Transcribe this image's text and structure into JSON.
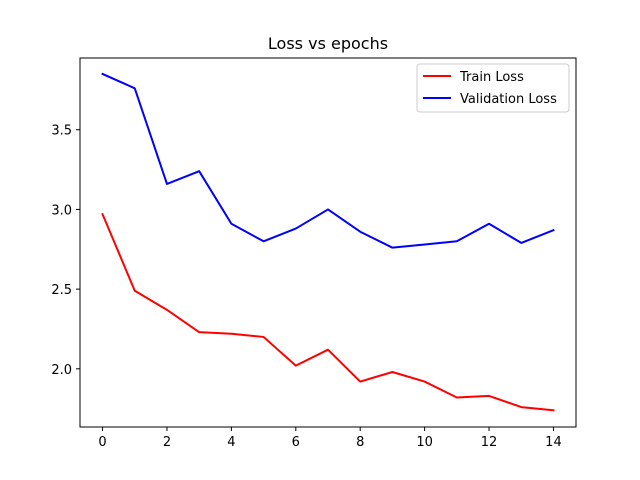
{
  "chart_data": {
    "type": "line",
    "title": "Loss vs epochs",
    "xlabel": "",
    "ylabel": "",
    "x": [
      0,
      1,
      2,
      3,
      4,
      5,
      6,
      7,
      8,
      9,
      10,
      11,
      12,
      13,
      14
    ],
    "series": [
      {
        "name": "Train Loss",
        "color": "#ff0000",
        "values": [
          2.97,
          2.49,
          2.37,
          2.23,
          2.22,
          2.2,
          2.02,
          2.12,
          1.92,
          1.98,
          1.92,
          1.82,
          1.83,
          1.76,
          1.74
        ]
      },
      {
        "name": "Validation Loss",
        "color": "#0000ff",
        "values": [
          3.85,
          3.76,
          3.16,
          3.24,
          2.91,
          2.8,
          2.88,
          3.0,
          2.86,
          2.76,
          2.78,
          2.8,
          2.91,
          2.79,
          2.87
        ]
      }
    ],
    "xlim": [
      -0.7,
      14.7
    ],
    "ylim": [
      1.635,
      3.95
    ],
    "xticks": [
      0,
      2,
      4,
      6,
      8,
      10,
      12,
      14
    ],
    "yticks": [
      2.0,
      2.5,
      3.0,
      3.5
    ],
    "ytick_labels": [
      "2.0",
      "2.5",
      "3.0",
      "3.5"
    ],
    "grid": false,
    "legend_position": "top-right"
  }
}
